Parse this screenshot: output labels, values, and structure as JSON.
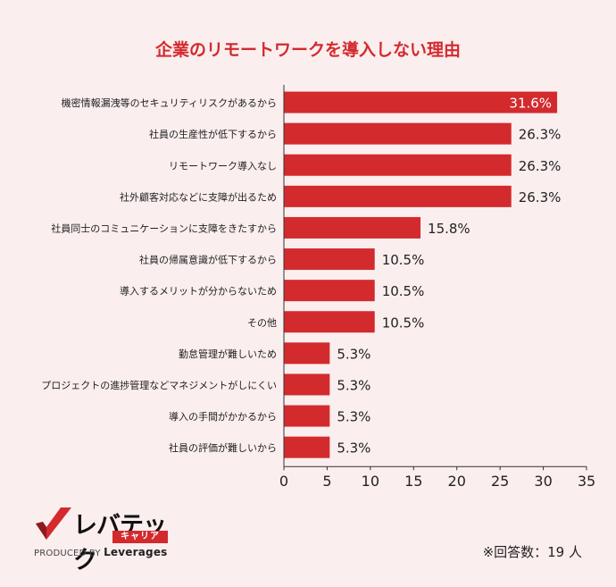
{
  "chart_data": {
    "type": "bar",
    "orientation": "horizontal",
    "title": "企業のリモートワークを導入しない理由",
    "categories": [
      "機密情報漏洩等のセキュリティリスクがあるから",
      "社員の生産性が低下するから",
      "リモートワーク導入なし",
      "社外顧客対応などに支障が出るため",
      "社員同士のコミュニケーションに支障をきたすから",
      "社員の帰属意識が低下するから",
      "導入するメリットが分からないため",
      "その他",
      "勤怠管理が難しいため",
      "プロジェクトの進捗管理などマネジメントがしにくい",
      "導入の手間がかかるから",
      "社員の評価が難しいから"
    ],
    "values": [
      31.6,
      26.3,
      26.3,
      26.3,
      15.8,
      10.5,
      10.5,
      10.5,
      5.3,
      5.3,
      5.3,
      5.3
    ],
    "value_labels": [
      "31.6%",
      "26.3%",
      "26.3%",
      "26.3%",
      "15.8%",
      "10.5%",
      "10.5%",
      "10.5%",
      "5.3%",
      "5.3%",
      "5.3%",
      "5.3%"
    ],
    "xlim": [
      0,
      35
    ],
    "xticks": [
      0,
      5,
      10,
      15,
      20,
      25,
      30,
      35
    ],
    "xlabel": "",
    "ylabel": "",
    "grid": false,
    "colors": {
      "bar": "#d32a2e",
      "title": "#d32a2e",
      "text": "#222222",
      "background": "#fbeeee"
    }
  },
  "branding": {
    "logo_main": "レバテック",
    "logo_sub": "キャリア",
    "produced_by_prefix": "PRODUCED BY",
    "produced_by_name": "Leverages"
  },
  "footnote": "※回答数：19 人"
}
